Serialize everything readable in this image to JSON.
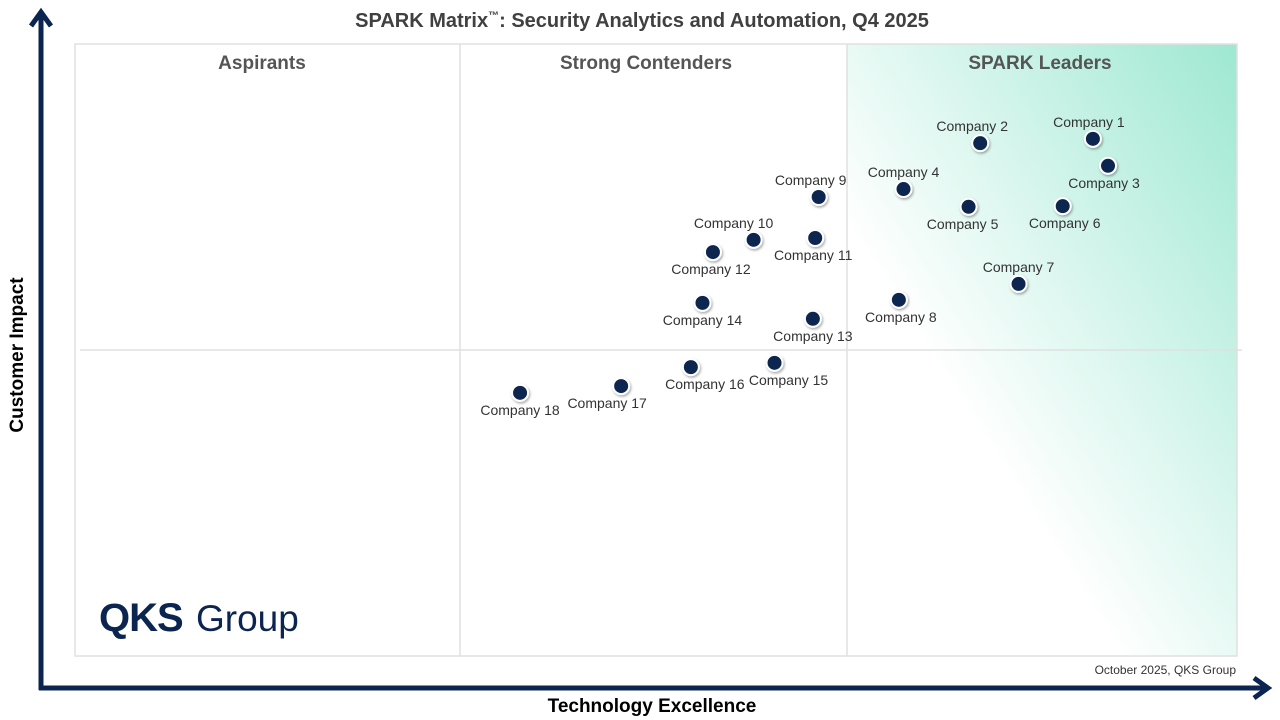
{
  "chart_data": {
    "type": "scatter",
    "title": "SPARK Matrix",
    "title_mark": "™",
    "title_rest": ": Security Analytics and Automation, Q4 2025",
    "xlabel": "Technology Excellence",
    "ylabel": "Customer Impact",
    "xlim": [
      0,
      100
    ],
    "ylim": [
      0,
      100
    ],
    "grid": false,
    "quadrants": [
      "Aspirants",
      "Strong Contenders",
      "SPARK Leaders"
    ],
    "footer": "October 2025, QKS Group",
    "logo": {
      "bold": "QKS",
      "light": "Group"
    },
    "colors": {
      "point": "#0b2550",
      "axis": "#0b2550",
      "leaders_gradient": "#9ee8d2"
    },
    "points": [
      {
        "name": "Company 1",
        "x": 87.6,
        "y": 84.5
      },
      {
        "name": "Company 2",
        "x": 77.9,
        "y": 83.8
      },
      {
        "name": "Company 3",
        "x": 88.9,
        "y": 80.1
      },
      {
        "name": "Company 4",
        "x": 71.3,
        "y": 76.3
      },
      {
        "name": "Company 5",
        "x": 76.9,
        "y": 73.4
      },
      {
        "name": "Company 6",
        "x": 85.0,
        "y": 73.5
      },
      {
        "name": "Company 7",
        "x": 81.2,
        "y": 60.8
      },
      {
        "name": "Company 8",
        "x": 70.9,
        "y": 58.2
      },
      {
        "name": "Company 9",
        "x": 64.0,
        "y": 75.0
      },
      {
        "name": "Company 10",
        "x": 58.4,
        "y": 68.0
      },
      {
        "name": "Company 11",
        "x": 63.7,
        "y": 68.3
      },
      {
        "name": "Company 12",
        "x": 54.9,
        "y": 66.0
      },
      {
        "name": "Company 13",
        "x": 63.5,
        "y": 55.1
      },
      {
        "name": "Company 14",
        "x": 54.0,
        "y": 57.7
      },
      {
        "name": "Company 15",
        "x": 60.2,
        "y": 47.9
      },
      {
        "name": "Company 16",
        "x": 53.0,
        "y": 47.2
      },
      {
        "name": "Company 17",
        "x": 47.0,
        "y": 44.1
      },
      {
        "name": "Company 18",
        "x": 38.3,
        "y": 43.0
      }
    ]
  }
}
